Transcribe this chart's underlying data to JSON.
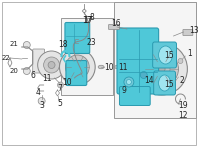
{
  "bg_color": "#ffffff",
  "cyan": "#4fc8d8",
  "cyan_dark": "#2a9ab0",
  "cyan_light": "#a0e4ef",
  "gray_line": "#888888",
  "gray_fill": "#cccccc",
  "gray_light": "#e5e5e5",
  "label_color": "#222222",
  "fs": 5.5,
  "fig_w": 2.0,
  "fig_h": 1.47,
  "dpi": 100
}
